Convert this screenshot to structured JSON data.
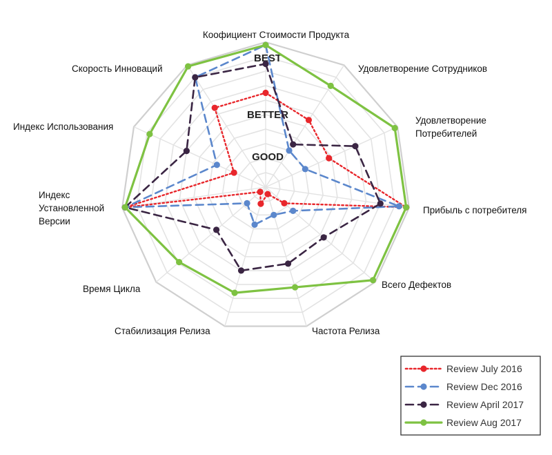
{
  "chart_data": {
    "type": "radar",
    "axes": [
      "Коофициент Стоимости Продукта",
      "Удовлетворение Сотрудников",
      "Удовлетворение Потребителей",
      "Прибыль с потребителя",
      "Всего Дефектов",
      "Частота Релиза",
      "Стабилизация Релиза",
      "Время Цикла",
      "Индекс Установленной Версии",
      "Индекс Использования",
      "Скорость Инноваций"
    ],
    "ring_labels": [
      "GOOD",
      "BETTER",
      "BEST"
    ],
    "scale": {
      "min": 0,
      "max": 10
    },
    "series": [
      {
        "name": "Review July 2016",
        "color": "#e8262b",
        "style": "dotted",
        "values": [
          6.5,
          5.5,
          4.8,
          9.8,
          1.7,
          0.5,
          1.2,
          0.5,
          9.8,
          2.4,
          6.5
        ]
      },
      {
        "name": "Review Dec 2016",
        "color": "#5b87cc",
        "style": "dashed",
        "values": [
          9.8,
          3.0,
          3.0,
          9.3,
          2.5,
          2.0,
          2.7,
          1.7,
          9.8,
          3.7,
          9.0
        ]
      },
      {
        "name": "Review April 2017",
        "color": "#3a2543",
        "style": "dashed",
        "values": [
          8.5,
          3.5,
          6.8,
          8.0,
          5.3,
          5.5,
          6.0,
          4.5,
          9.8,
          6.0,
          9.0
        ]
      },
      {
        "name": "Review Aug 2017",
        "color": "#7ec242",
        "style": "solid",
        "values": [
          9.8,
          8.3,
          9.8,
          9.8,
          9.8,
          7.2,
          7.6,
          7.9,
          9.8,
          8.8,
          9.9
        ]
      }
    ]
  }
}
